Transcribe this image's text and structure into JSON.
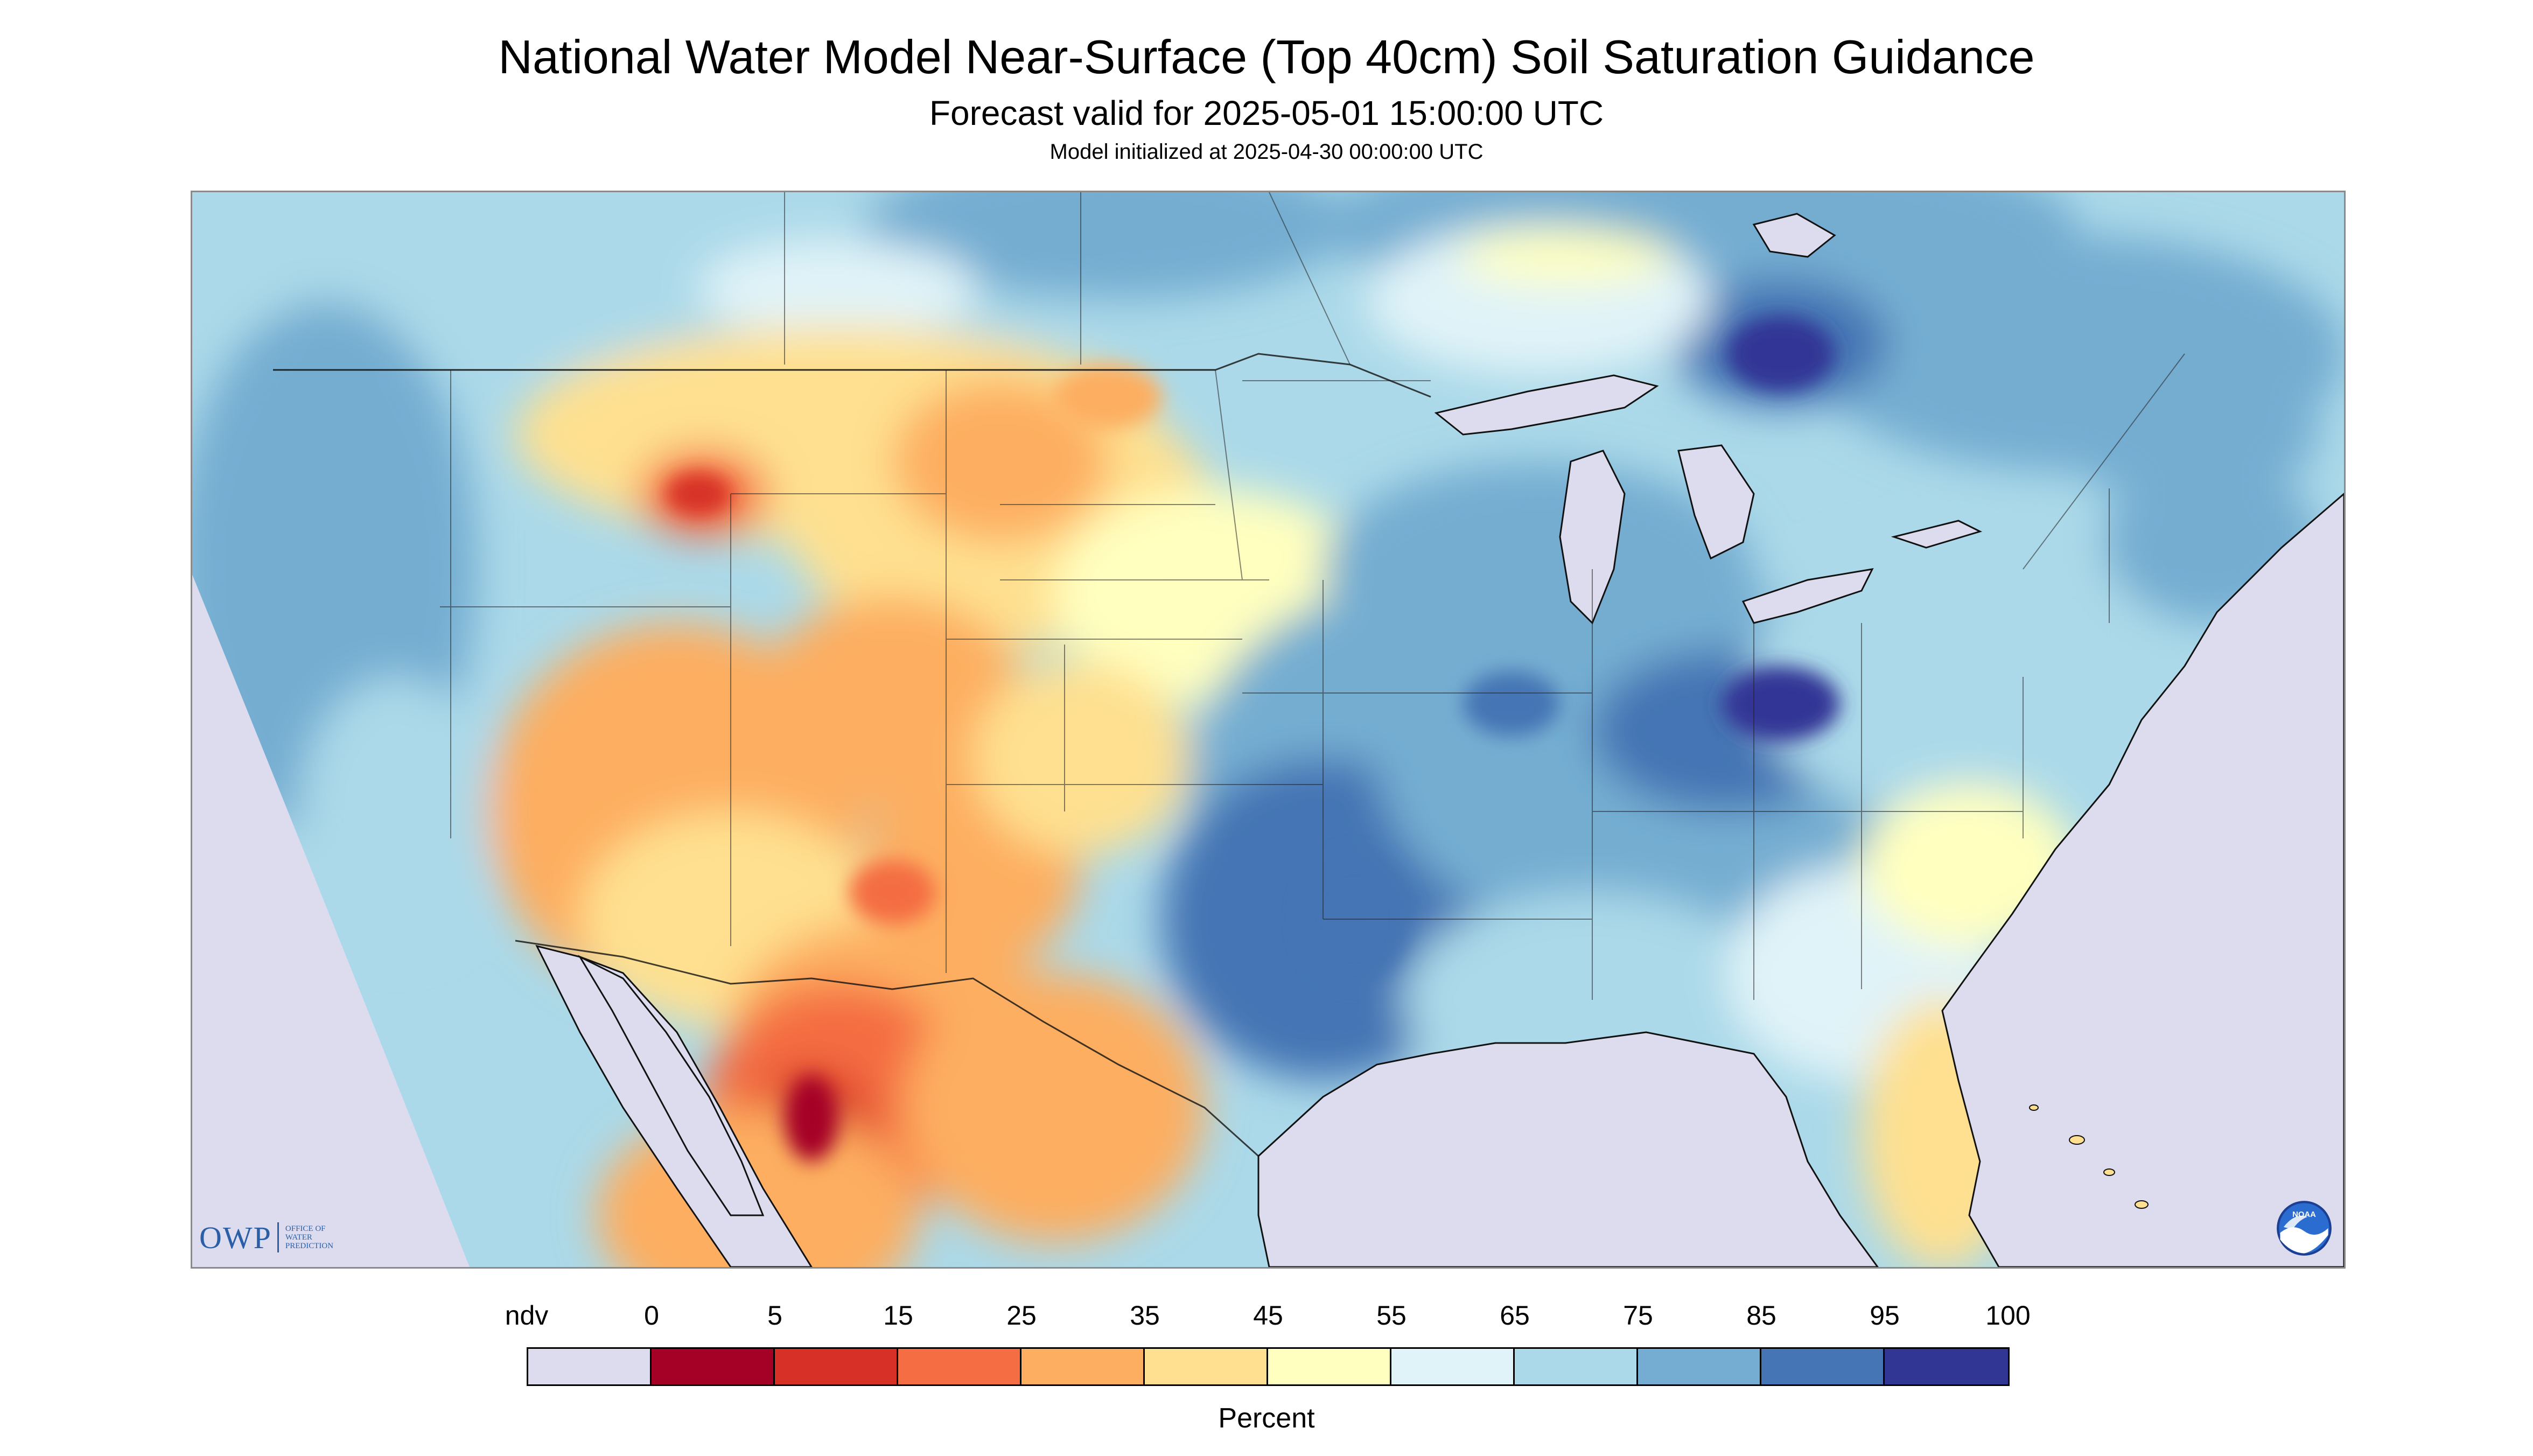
{
  "header": {
    "title": "National Water Model Near-Surface (Top 40cm) Soil Saturation Guidance",
    "subtitle": "Forecast valid for 2025-05-01 15:00:00 UTC",
    "init_line": "Model initialized at 2025-04-30 00:00:00 UTC"
  },
  "map": {
    "no_data_color": "#dcdcee",
    "background_color": "#ffffff",
    "border_color": "#111111"
  },
  "logos": {
    "owp": {
      "mark": "OWP",
      "lines": [
        "OFFICE OF",
        "WATER",
        "PREDICTION"
      ],
      "color": "#2a5fa8"
    },
    "noaa": {
      "icon": "noaa-emblem-icon",
      "text": "NOAA"
    }
  },
  "legend": {
    "title": "Percent",
    "labels": [
      "ndv",
      "0",
      "5",
      "15",
      "25",
      "35",
      "45",
      "55",
      "65",
      "75",
      "85",
      "95",
      "100"
    ],
    "bins": [
      {
        "label": "ndv",
        "color": "#dcdcee"
      },
      {
        "range": [
          0,
          5
        ],
        "color": "#a50026"
      },
      {
        "range": [
          5,
          15
        ],
        "color": "#d73027"
      },
      {
        "range": [
          15,
          25
        ],
        "color": "#f46d43"
      },
      {
        "range": [
          25,
          35
        ],
        "color": "#fdae61"
      },
      {
        "range": [
          35,
          45
        ],
        "color": "#fee090"
      },
      {
        "range": [
          45,
          55
        ],
        "color": "#ffffbf"
      },
      {
        "range": [
          55,
          65
        ],
        "color": "#e0f3f8"
      },
      {
        "range": [
          65,
          75
        ],
        "color": "#abd9e9"
      },
      {
        "range": [
          75,
          85
        ],
        "color": "#74add1"
      },
      {
        "range": [
          85,
          95
        ],
        "color": "#4575b4"
      },
      {
        "range": [
          95,
          100
        ],
        "color": "#313695"
      }
    ]
  }
}
